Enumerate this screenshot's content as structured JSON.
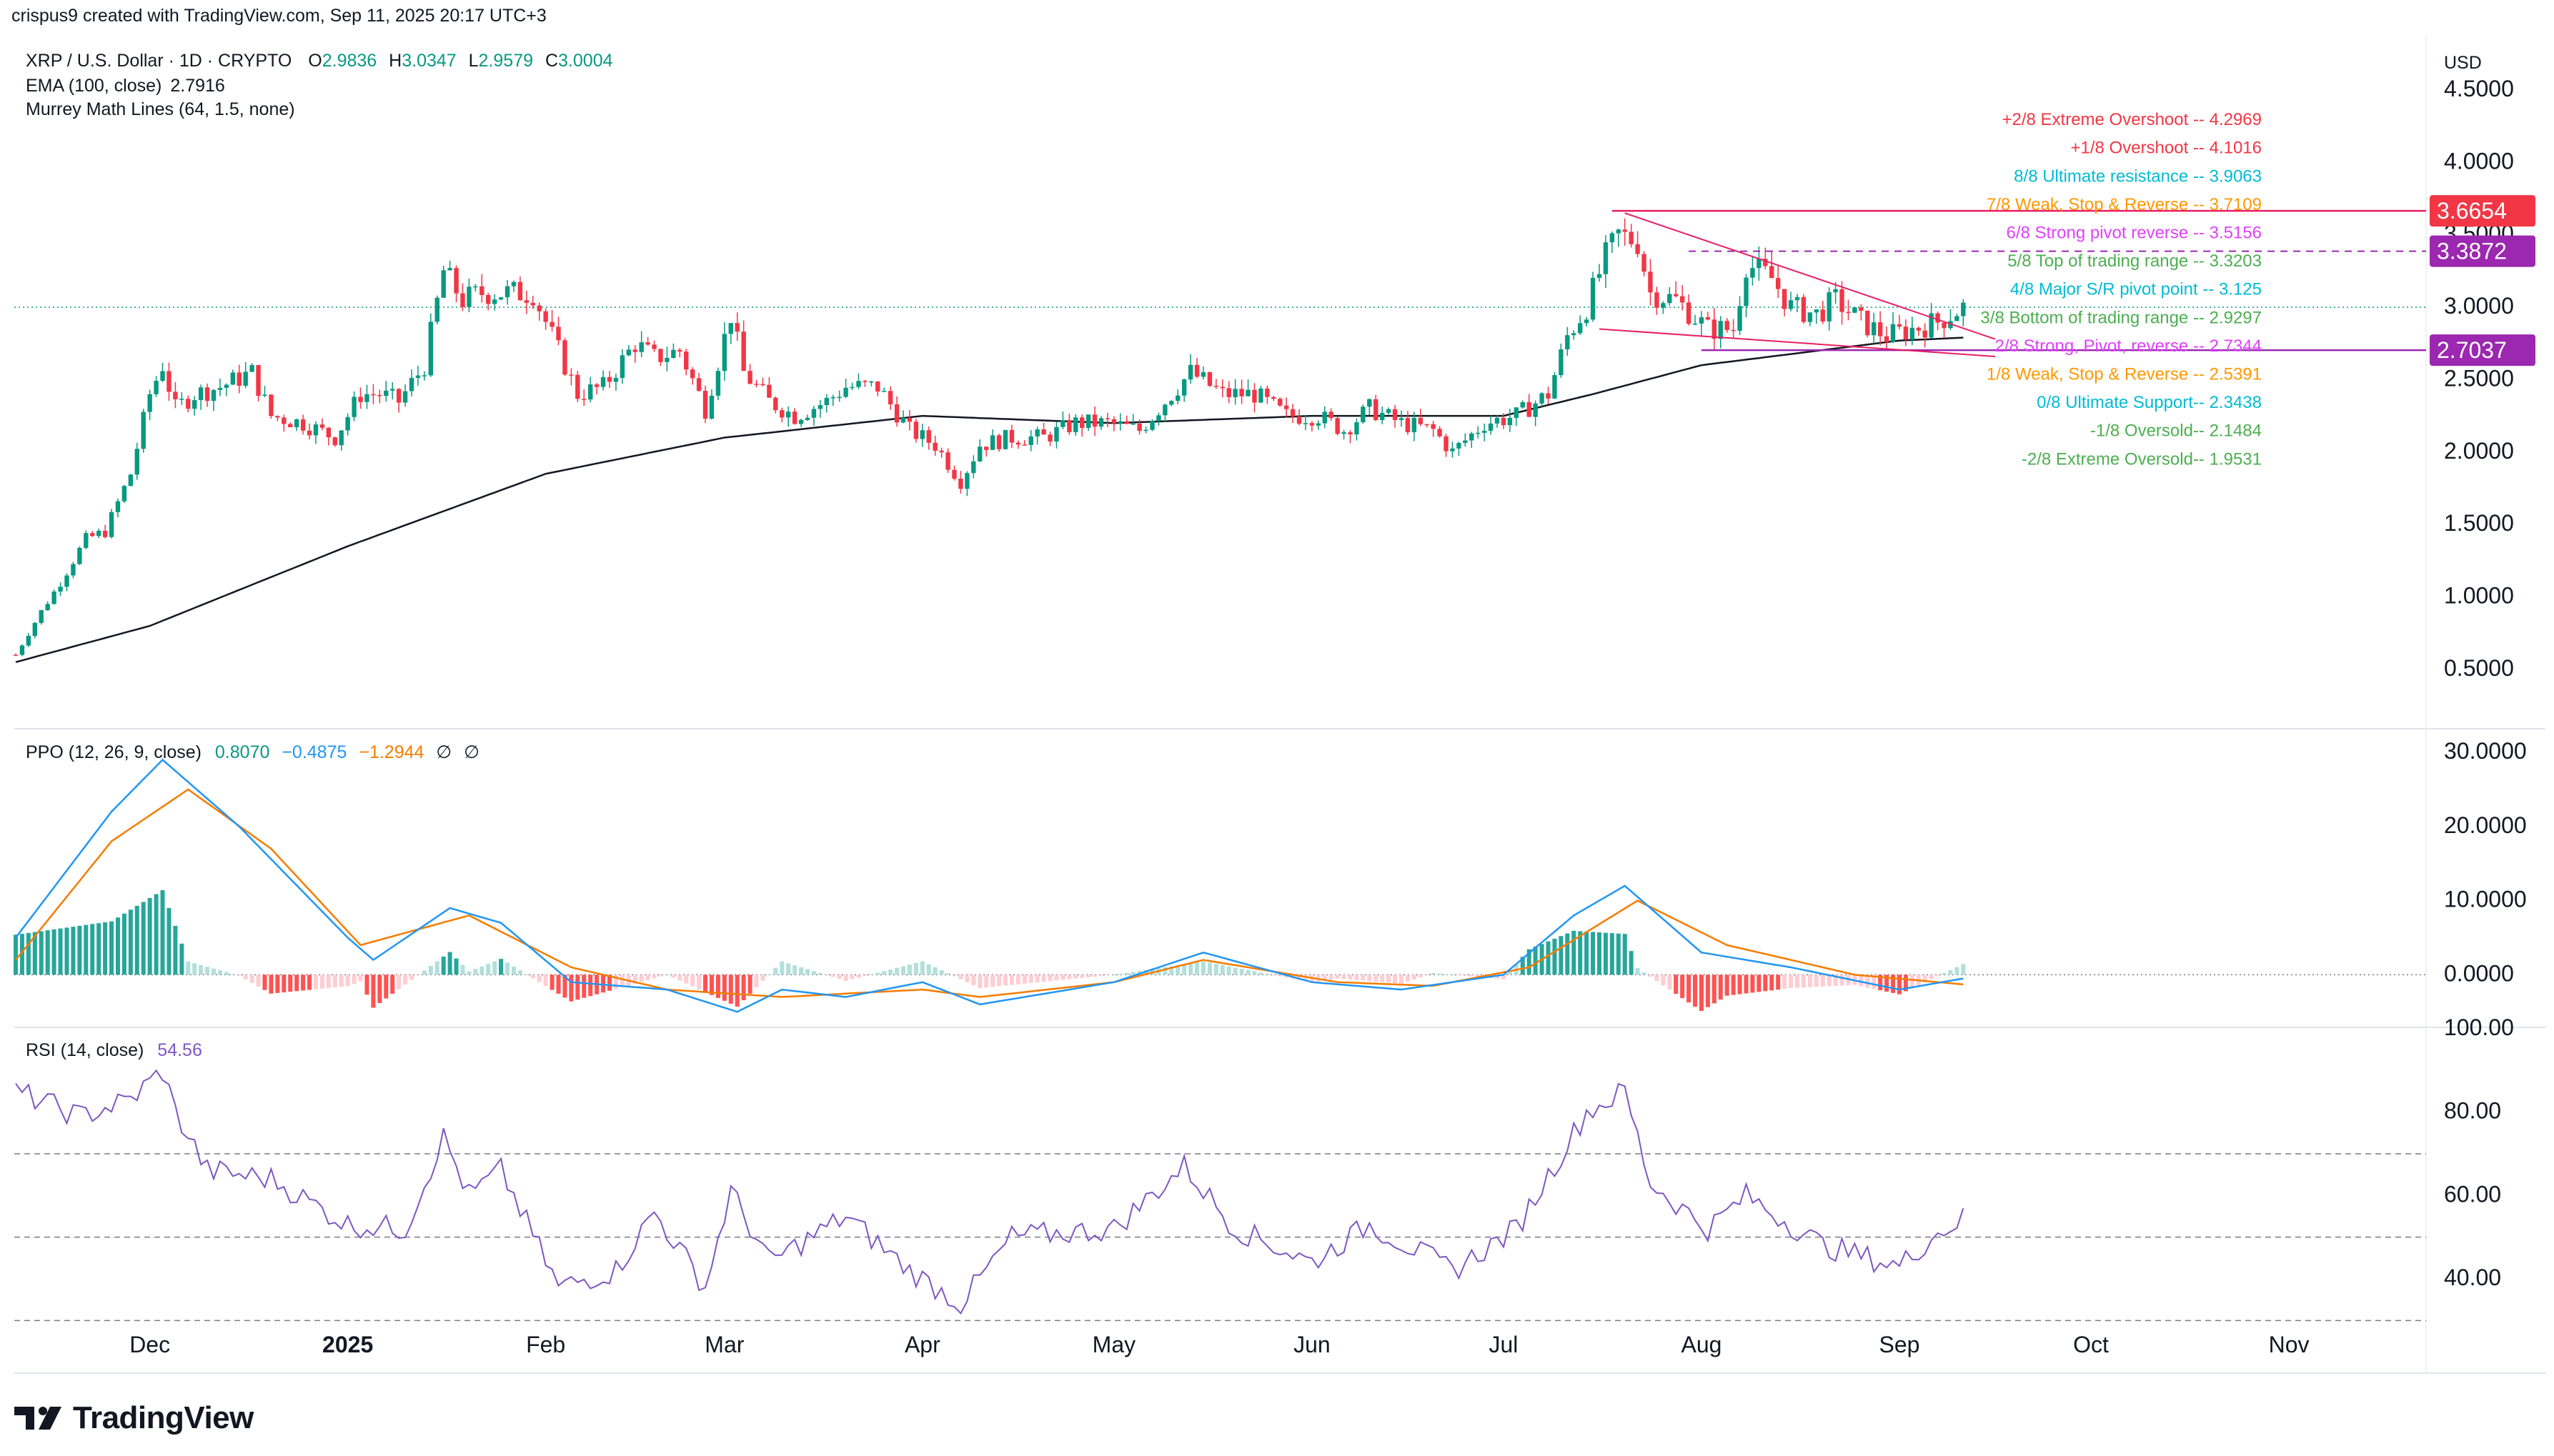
{
  "header": {
    "caption": "crispus9 created with TradingView.com, Sep 11, 2025 20:17 UTC+3"
  },
  "legend": {
    "symbol": "XRP / U.S. Dollar · 1D · CRYPTO",
    "o_label": "O",
    "o": "2.9836",
    "h_label": "H",
    "h": "3.0347",
    "l_label": "L",
    "l": "2.9579",
    "c_label": "C",
    "c": "3.0004",
    "ema": "EMA (100, close)",
    "ema_value": "2.7916",
    "murrey": "Murrey Math Lines (64, 1.5, none)"
  },
  "ppo_legend": {
    "label": "PPO (12, 26, 9, close)",
    "v1": "0.8070",
    "v2": "−0.4875",
    "v3": "−1.2944",
    "v4": "∅",
    "v5": "∅"
  },
  "rsi_legend": {
    "label": "RSI (14, close)",
    "value": "54.56"
  },
  "currency": "USD",
  "footer": {
    "brand": "TradingView"
  },
  "colors": {
    "up": "#089981",
    "down": "#f23645",
    "ema": "#131722",
    "ppo_line": "#2196f3",
    "ppo_signal": "#f57c00",
    "rsi_line": "#7e57c2",
    "triangle": "#e91e63"
  },
  "chart_data": {
    "type": "candlestick",
    "price_axis": {
      "ticks": [
        "4.5000",
        "4.0000",
        "3.5000",
        "3.0000",
        "2.5000",
        "2.0000",
        "1.5000",
        "1.0000",
        "0.5000"
      ],
      "ylim": [
        0.1,
        4.85
      ]
    },
    "price_badges": [
      {
        "label": "3.6654",
        "value": 3.6654,
        "color": "#f23645"
      },
      {
        "label": "3.3872",
        "value": 3.3872,
        "color": "#9c27b0"
      },
      {
        "label": "2.7037",
        "value": 2.7037,
        "color": "#9c27b0"
      }
    ],
    "x_axis": {
      "labels": [
        "Dec",
        "2025",
        "Feb",
        "Mar",
        "Apr",
        "May",
        "Jun",
        "Jul",
        "Aug",
        "Sep",
        "Oct",
        "Nov"
      ],
      "label_dates": [
        "2024-12-01",
        "2025-01-01",
        "2025-02-01",
        "2025-03-01",
        "2025-04-01",
        "2025-05-01",
        "2025-06-01",
        "2025-07-01",
        "2025-08-01",
        "2025-09-01",
        "2025-10-01",
        "2025-11-01"
      ]
    },
    "murrey_lines": [
      {
        "label": "+2/8 Extreme Overshoot --",
        "value": "4.2969",
        "color": "#f23645"
      },
      {
        "label": "+1/8 Overshoot --",
        "value": "4.1016",
        "color": "#f23645"
      },
      {
        "label": "8/8 Ultimate resistance --",
        "value": "3.9063",
        "color": "#00bcd4"
      },
      {
        "label": "7/8 Weak, Stop & Reverse --",
        "value": "3.7109",
        "color": "#ff9800"
      },
      {
        "label": "6/8 Strong pivot reverse --",
        "value": "3.5156",
        "color": "#e040fb"
      },
      {
        "label": "5/8 Top of trading range --",
        "value": "3.3203",
        "color": "#4caf50"
      },
      {
        "label": "4/8 Major S/R pivot point --",
        "value": "3.125",
        "color": "#00bcd4"
      },
      {
        "label": "3/8 Bottom of trading range --",
        "value": "2.9297",
        "color": "#4caf50"
      },
      {
        "label": "2/8 Strong, Pivot, reverse --",
        "value": "2.7344",
        "color": "#e040fb"
      },
      {
        "label": "1/8 Weak, Stop & Reverse --",
        "value": "2.5391",
        "color": "#ff9800"
      },
      {
        "label": "0/8 Ultimate Support--",
        "value": "2.3438",
        "color": "#00bcd4"
      },
      {
        "label": "-1/8 Oversold--",
        "value": "2.1484",
        "color": "#4caf50"
      },
      {
        "label": "-2/8 Extreme Oversold--",
        "value": "1.9531",
        "color": "#4caf50"
      }
    ],
    "close_path": [
      [
        "2024-11-10",
        0.6
      ],
      [
        "2024-11-14",
        0.9
      ],
      [
        "2024-11-17",
        1.1
      ],
      [
        "2024-11-21",
        1.4
      ],
      [
        "2024-11-24",
        1.45
      ],
      [
        "2024-11-28",
        1.85
      ],
      [
        "2024-12-01",
        2.4
      ],
      [
        "2024-12-03",
        2.6
      ],
      [
        "2024-12-05",
        2.3
      ],
      [
        "2024-12-08",
        2.4
      ],
      [
        "2024-12-12",
        2.45
      ],
      [
        "2024-12-17",
        2.55
      ],
      [
        "2024-12-20",
        2.25
      ],
      [
        "2024-12-25",
        2.2
      ],
      [
        "2024-12-30",
        2.1
      ],
      [
        "2025-01-03",
        2.4
      ],
      [
        "2025-01-06",
        2.4
      ],
      [
        "2025-01-09",
        2.35
      ],
      [
        "2025-01-13",
        2.6
      ],
      [
        "2025-01-16",
        3.25
      ],
      [
        "2025-01-19",
        3.05
      ],
      [
        "2025-01-22",
        3.1
      ],
      [
        "2025-01-26",
        3.1
      ],
      [
        "2025-01-30",
        3.1
      ],
      [
        "2025-02-03",
        2.7
      ],
      [
        "2025-02-06",
        2.4
      ],
      [
        "2025-02-10",
        2.45
      ],
      [
        "2025-02-15",
        2.75
      ],
      [
        "2025-02-18",
        2.65
      ],
      [
        "2025-02-22",
        2.7
      ],
      [
        "2025-02-26",
        2.3
      ],
      [
        "2025-03-02",
        2.95
      ],
      [
        "2025-03-04",
        2.55
      ],
      [
        "2025-03-08",
        2.35
      ],
      [
        "2025-03-12",
        2.25
      ],
      [
        "2025-03-17",
        2.35
      ],
      [
        "2025-03-20",
        2.45
      ],
      [
        "2025-03-25",
        2.45
      ],
      [
        "2025-03-30",
        2.15
      ],
      [
        "2025-04-03",
        2.05
      ],
      [
        "2025-04-07",
        1.8
      ],
      [
        "2025-04-10",
        2.05
      ],
      [
        "2025-04-15",
        2.1
      ],
      [
        "2025-04-20",
        2.1
      ],
      [
        "2025-04-25",
        2.2
      ],
      [
        "2025-04-30",
        2.2
      ],
      [
        "2025-05-05",
        2.15
      ],
      [
        "2025-05-10",
        2.4
      ],
      [
        "2025-05-13",
        2.55
      ],
      [
        "2025-05-18",
        2.4
      ],
      [
        "2025-05-23",
        2.4
      ],
      [
        "2025-05-28",
        2.25
      ],
      [
        "2025-06-02",
        2.25
      ],
      [
        "2025-06-06",
        2.15
      ],
      [
        "2025-06-10",
        2.3
      ],
      [
        "2025-06-15",
        2.2
      ],
      [
        "2025-06-20",
        2.15
      ],
      [
        "2025-06-23",
        2.0
      ],
      [
        "2025-06-28",
        2.2
      ],
      [
        "2025-07-03",
        2.25
      ],
      [
        "2025-07-08",
        2.4
      ],
      [
        "2025-07-11",
        2.8
      ],
      [
        "2025-07-14",
        3.0
      ],
      [
        "2025-07-17",
        3.35
      ],
      [
        "2025-07-19",
        3.5
      ],
      [
        "2025-07-22",
        3.45
      ],
      [
        "2025-07-24",
        3.1
      ],
      [
        "2025-07-28",
        3.05
      ],
      [
        "2025-08-02",
        2.85
      ],
      [
        "2025-08-06",
        2.85
      ],
      [
        "2025-08-08",
        3.3
      ],
      [
        "2025-08-12",
        3.2
      ],
      [
        "2025-08-15",
        3.0
      ],
      [
        "2025-08-19",
        2.95
      ],
      [
        "2025-08-22",
        3.05
      ],
      [
        "2025-08-26",
        2.9
      ],
      [
        "2025-08-30",
        2.8
      ],
      [
        "2025-09-03",
        2.85
      ],
      [
        "2025-09-07",
        2.9
      ],
      [
        "2025-09-11",
        3.0
      ]
    ],
    "ema_path": [
      [
        "2024-11-10",
        0.55
      ],
      [
        "2024-12-01",
        0.8
      ],
      [
        "2025-01-01",
        1.35
      ],
      [
        "2025-02-01",
        1.85
      ],
      [
        "2025-03-01",
        2.1
      ],
      [
        "2025-04-01",
        2.25
      ],
      [
        "2025-05-01",
        2.2
      ],
      [
        "2025-06-01",
        2.25
      ],
      [
        "2025-07-01",
        2.25
      ],
      [
        "2025-07-15",
        2.4
      ],
      [
        "2025-08-01",
        2.6
      ],
      [
        "2025-09-01",
        2.77
      ],
      [
        "2025-09-11",
        2.79
      ]
    ],
    "ppo_axis": {
      "ticks": [
        "30.0000",
        "20.0000",
        "10.0000",
        "0.0000"
      ],
      "ylim": [
        -7,
        33
      ]
    },
    "ppo_line_path": [
      [
        "2024-11-10",
        5
      ],
      [
        "2024-11-25",
        22
      ],
      [
        "2024-12-03",
        29
      ],
      [
        "2024-12-15",
        20
      ],
      [
        "2025-01-01",
        5
      ],
      [
        "2025-01-05",
        2
      ],
      [
        "2025-01-17",
        9
      ],
      [
        "2025-01-25",
        7
      ],
      [
        "2025-02-05",
        -1
      ],
      [
        "2025-02-20",
        -2
      ],
      [
        "2025-03-03",
        -5
      ],
      [
        "2025-03-10",
        -2
      ],
      [
        "2025-03-20",
        -3
      ],
      [
        "2025-04-01",
        -1
      ],
      [
        "2025-04-10",
        -4
      ],
      [
        "2025-05-01",
        -1
      ],
      [
        "2025-05-15",
        3
      ],
      [
        "2025-06-01",
        -1
      ],
      [
        "2025-06-15",
        -2
      ],
      [
        "2025-07-01",
        0
      ],
      [
        "2025-07-12",
        8
      ],
      [
        "2025-07-20",
        12
      ],
      [
        "2025-08-01",
        3
      ],
      [
        "2025-08-15",
        1
      ],
      [
        "2025-09-01",
        -2
      ],
      [
        "2025-09-11",
        -0.5
      ]
    ],
    "ppo_signal_path": [
      [
        "2024-11-10",
        2
      ],
      [
        "2024-11-25",
        18
      ],
      [
        "2024-12-07",
        25
      ],
      [
        "2024-12-20",
        17
      ],
      [
        "2025-01-03",
        4
      ],
      [
        "2025-01-20",
        8
      ],
      [
        "2025-02-05",
        1
      ],
      [
        "2025-02-20",
        -2
      ],
      [
        "2025-03-10",
        -3
      ],
      [
        "2025-04-01",
        -2
      ],
      [
        "2025-04-10",
        -3
      ],
      [
        "2025-05-01",
        -1
      ],
      [
        "2025-05-15",
        2
      ],
      [
        "2025-06-05",
        -1
      ],
      [
        "2025-06-20",
        -1.5
      ],
      [
        "2025-07-05",
        1
      ],
      [
        "2025-07-22",
        10
      ],
      [
        "2025-08-05",
        4
      ],
      [
        "2025-08-25",
        0
      ],
      [
        "2025-09-11",
        -1.3
      ]
    ],
    "rsi_axis": {
      "ticks": [
        "100.00",
        "80.00",
        "60.00",
        "40.00"
      ],
      "ylim": [
        28,
        100
      ],
      "bands": [
        70,
        50,
        30
      ]
    },
    "rsi_path": [
      [
        "2024-11-10",
        85
      ],
      [
        "2024-11-20",
        79
      ],
      [
        "2024-11-28",
        83
      ],
      [
        "2024-12-03",
        90
      ],
      [
        "2024-12-05",
        80
      ],
      [
        "2024-12-10",
        66
      ],
      [
        "2024-12-20",
        64
      ],
      [
        "2025-01-01",
        53
      ],
      [
        "2025-01-10",
        52
      ],
      [
        "2025-01-16",
        74
      ],
      [
        "2025-01-20",
        60
      ],
      [
        "2025-01-25",
        66
      ],
      [
        "2025-02-03",
        38
      ],
      [
        "2025-02-12",
        42
      ],
      [
        "2025-02-18",
        56
      ],
      [
        "2025-02-26",
        38
      ],
      [
        "2025-03-02",
        61
      ],
      [
        "2025-03-08",
        44
      ],
      [
        "2025-03-20",
        55
      ],
      [
        "2025-03-30",
        42
      ],
      [
        "2025-04-07",
        34
      ],
      [
        "2025-04-15",
        50
      ],
      [
        "2025-05-01",
        52
      ],
      [
        "2025-05-12",
        67
      ],
      [
        "2025-05-20",
        52
      ],
      [
        "2025-06-01",
        44
      ],
      [
        "2025-06-10",
        53
      ],
      [
        "2025-06-23",
        42
      ],
      [
        "2025-07-03",
        52
      ],
      [
        "2025-07-14",
        80
      ],
      [
        "2025-07-20",
        85
      ],
      [
        "2025-07-24",
        63
      ],
      [
        "2025-08-02",
        52
      ],
      [
        "2025-08-08",
        60
      ],
      [
        "2025-08-20",
        48
      ],
      [
        "2025-09-01",
        43
      ],
      [
        "2025-09-06",
        50
      ],
      [
        "2025-09-11",
        54.5
      ]
    ]
  }
}
